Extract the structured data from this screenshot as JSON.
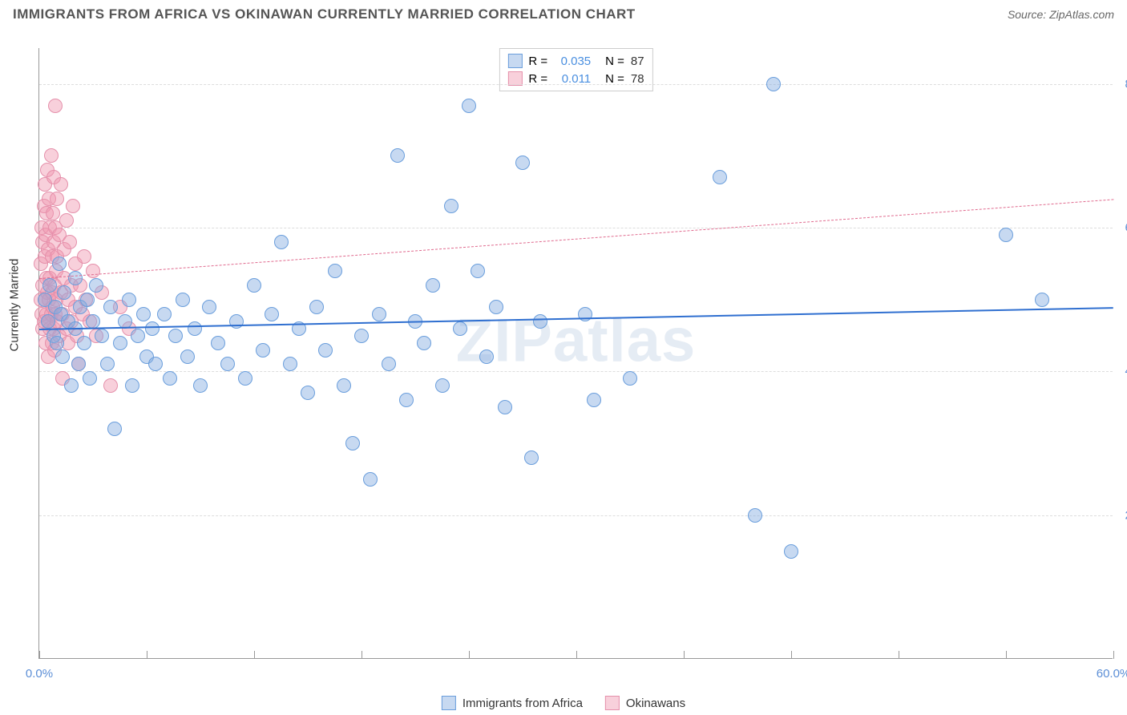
{
  "title": "IMMIGRANTS FROM AFRICA VS OKINAWAN CURRENTLY MARRIED CORRELATION CHART",
  "source": "Source: ZipAtlas.com",
  "watermark": "ZIPatlas",
  "ylabel": "Currently Married",
  "chart": {
    "type": "scatter",
    "xlim": [
      0,
      60
    ],
    "ylim": [
      0,
      85
    ],
    "ytick_step": 20,
    "ytick_format_suffix": ".0%",
    "xticks_pos": [
      0,
      6,
      12,
      18,
      24,
      30,
      36,
      42,
      48,
      54,
      60
    ],
    "xtick_labels": {
      "0": "0.0%",
      "60": "60.0%"
    },
    "background_color": "#ffffff",
    "grid_color": "#dddddd",
    "axis_color": "#999999",
    "marker_radius": 9,
    "series": [
      {
        "name": "Immigrants from Africa",
        "fill": "rgba(130,170,225,0.45)",
        "stroke": "#6a9edc",
        "trend_color": "#2f6fd0",
        "trend_width": 2,
        "trend_dash": "solid",
        "r": "0.035",
        "n": "87",
        "trend": {
          "y_at_x0": 46,
          "y_at_xmax": 49
        },
        "points": [
          [
            0.3,
            50
          ],
          [
            0.5,
            47
          ],
          [
            0.6,
            52
          ],
          [
            0.8,
            45
          ],
          [
            0.9,
            49
          ],
          [
            1.0,
            44
          ],
          [
            1.1,
            55
          ],
          [
            1.2,
            48
          ],
          [
            1.3,
            42
          ],
          [
            1.4,
            51
          ],
          [
            1.6,
            47
          ],
          [
            1.8,
            38
          ],
          [
            2.0,
            53
          ],
          [
            2.0,
            46
          ],
          [
            2.2,
            41
          ],
          [
            2.3,
            49
          ],
          [
            2.5,
            44
          ],
          [
            2.7,
            50
          ],
          [
            2.8,
            39
          ],
          [
            3.0,
            47
          ],
          [
            3.2,
            52
          ],
          [
            3.5,
            45
          ],
          [
            3.8,
            41
          ],
          [
            4.0,
            49
          ],
          [
            4.2,
            32
          ],
          [
            4.5,
            44
          ],
          [
            4.8,
            47
          ],
          [
            5.0,
            50
          ],
          [
            5.2,
            38
          ],
          [
            5.5,
            45
          ],
          [
            5.8,
            48
          ],
          [
            6.0,
            42
          ],
          [
            6.3,
            46
          ],
          [
            6.5,
            41
          ],
          [
            7.0,
            48
          ],
          [
            7.3,
            39
          ],
          [
            7.6,
            45
          ],
          [
            8.0,
            50
          ],
          [
            8.3,
            42
          ],
          [
            8.7,
            46
          ],
          [
            9.0,
            38
          ],
          [
            9.5,
            49
          ],
          [
            10.0,
            44
          ],
          [
            10.5,
            41
          ],
          [
            11.0,
            47
          ],
          [
            11.5,
            39
          ],
          [
            12.0,
            52
          ],
          [
            12.5,
            43
          ],
          [
            13.0,
            48
          ],
          [
            13.5,
            58
          ],
          [
            14.0,
            41
          ],
          [
            14.5,
            46
          ],
          [
            15.0,
            37
          ],
          [
            15.5,
            49
          ],
          [
            16.0,
            43
          ],
          [
            16.5,
            54
          ],
          [
            17.0,
            38
          ],
          [
            17.5,
            30
          ],
          [
            18.0,
            45
          ],
          [
            18.5,
            25
          ],
          [
            19.0,
            48
          ],
          [
            19.5,
            41
          ],
          [
            20.0,
            70
          ],
          [
            20.5,
            36
          ],
          [
            21.0,
            47
          ],
          [
            21.5,
            44
          ],
          [
            22.0,
            52
          ],
          [
            22.5,
            38
          ],
          [
            23.0,
            63
          ],
          [
            23.5,
            46
          ],
          [
            24.0,
            77
          ],
          [
            24.5,
            54
          ],
          [
            25.0,
            42
          ],
          [
            25.5,
            49
          ],
          [
            26.0,
            35
          ],
          [
            27.0,
            69
          ],
          [
            27.5,
            28
          ],
          [
            28.0,
            47
          ],
          [
            30.5,
            48
          ],
          [
            31.0,
            36
          ],
          [
            33.0,
            39
          ],
          [
            38.0,
            67
          ],
          [
            40.0,
            20
          ],
          [
            41.0,
            80
          ],
          [
            42.0,
            15
          ],
          [
            54.0,
            59
          ],
          [
            56.0,
            50
          ]
        ]
      },
      {
        "name": "Okinawans",
        "fill": "rgba(240,150,175,0.45)",
        "stroke": "#e590ab",
        "trend_color": "#e06a8e",
        "trend_width": 1.5,
        "trend_dash": "dashed",
        "r": "0.011",
        "n": "78",
        "trend": {
          "y_at_x0": 53,
          "y_at_xmax": 64
        },
        "points": [
          [
            0.1,
            50
          ],
          [
            0.1,
            55
          ],
          [
            0.15,
            48
          ],
          [
            0.15,
            60
          ],
          [
            0.2,
            46
          ],
          [
            0.2,
            58
          ],
          [
            0.2,
            52
          ],
          [
            0.25,
            63
          ],
          [
            0.25,
            47
          ],
          [
            0.3,
            56
          ],
          [
            0.3,
            50
          ],
          [
            0.3,
            66
          ],
          [
            0.35,
            44
          ],
          [
            0.35,
            59
          ],
          [
            0.4,
            53
          ],
          [
            0.4,
            48
          ],
          [
            0.4,
            62
          ],
          [
            0.45,
            51
          ],
          [
            0.45,
            68
          ],
          [
            0.5,
            47
          ],
          [
            0.5,
            57
          ],
          [
            0.5,
            42
          ],
          [
            0.55,
            64
          ],
          [
            0.55,
            50
          ],
          [
            0.6,
            46
          ],
          [
            0.6,
            60
          ],
          [
            0.6,
            53
          ],
          [
            0.65,
            70
          ],
          [
            0.65,
            48
          ],
          [
            0.7,
            56
          ],
          [
            0.7,
            51
          ],
          [
            0.7,
            44
          ],
          [
            0.75,
            62
          ],
          [
            0.75,
            49
          ],
          [
            0.8,
            58
          ],
          [
            0.8,
            46
          ],
          [
            0.8,
            67
          ],
          [
            0.85,
            52
          ],
          [
            0.85,
            43
          ],
          [
            0.9,
            60
          ],
          [
            0.9,
            48
          ],
          [
            0.9,
            77
          ],
          [
            0.95,
            54
          ],
          [
            0.95,
            50
          ],
          [
            1.0,
            64
          ],
          [
            1.0,
            47
          ],
          [
            1.0,
            56
          ],
          [
            1.1,
            45
          ],
          [
            1.1,
            59
          ],
          [
            1.2,
            51
          ],
          [
            1.2,
            66
          ],
          [
            1.3,
            48
          ],
          [
            1.3,
            39
          ],
          [
            1.4,
            57
          ],
          [
            1.4,
            53
          ],
          [
            1.5,
            46
          ],
          [
            1.5,
            61
          ],
          [
            1.6,
            50
          ],
          [
            1.6,
            44
          ],
          [
            1.7,
            58
          ],
          [
            1.8,
            52
          ],
          [
            1.8,
            47
          ],
          [
            1.9,
            63
          ],
          [
            2.0,
            49
          ],
          [
            2.0,
            55
          ],
          [
            2.1,
            45
          ],
          [
            2.2,
            41
          ],
          [
            2.3,
            52
          ],
          [
            2.4,
            48
          ],
          [
            2.5,
            56
          ],
          [
            2.6,
            50
          ],
          [
            2.8,
            47
          ],
          [
            3.0,
            54
          ],
          [
            3.2,
            45
          ],
          [
            3.5,
            51
          ],
          [
            4.0,
            38
          ],
          [
            4.5,
            49
          ],
          [
            5.0,
            46
          ]
        ]
      }
    ]
  },
  "colors": {
    "ytick": "#5b8ed6",
    "xtick": "#5b8ed6",
    "stat_r": "#4a8fe0",
    "stat_n": "#333333"
  },
  "legend": {
    "series1_label": "Immigrants from Africa",
    "series2_label": "Okinawans"
  }
}
